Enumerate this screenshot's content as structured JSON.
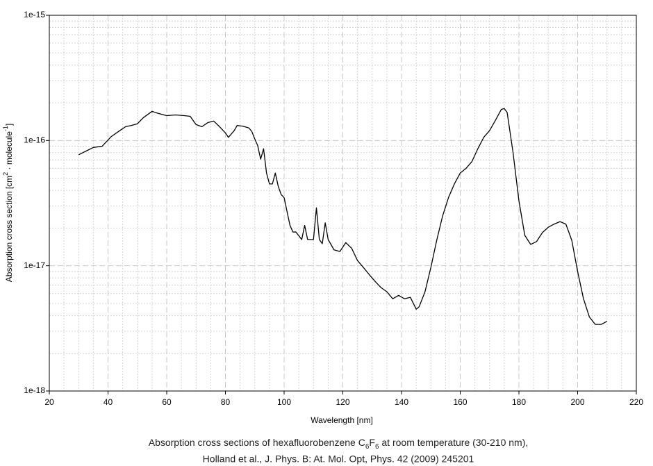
{
  "chart_data": {
    "type": "line",
    "log_y": true,
    "grid": true,
    "color": "#000000",
    "x_label": "Wavelength [nm]",
    "y_label": [
      "Absorption cross section [cm",
      "2",
      " · molecule",
      "-1",
      "]"
    ],
    "caption": [
      [
        "Absorption cross sections of hexafluorobenzene C",
        "6",
        "F",
        "6",
        " at room temperature (30-210 nm),"
      ],
      "Holland et al., J. Phys. B: At. Mol. Opt, Phys. 42 (2009) 245201"
    ],
    "xlim": [
      20,
      220
    ],
    "xticks": [
      20,
      40,
      60,
      80,
      100,
      120,
      140,
      160,
      180,
      200,
      220
    ],
    "ylim": [
      1e-18,
      1e-15
    ],
    "yticks": [
      {
        "value": 1e-18,
        "label": "1e-18"
      },
      {
        "value": 1e-17,
        "label": "1e-17"
      },
      {
        "value": 1e-16,
        "label": "1e-16"
      },
      {
        "value": 1e-15,
        "label": "1e-15"
      }
    ],
    "x": [
      30,
      35,
      38,
      41,
      44,
      46,
      48,
      50,
      52,
      55,
      57,
      60,
      63,
      66,
      68,
      70,
      72,
      74,
      76,
      78,
      80,
      81,
      83,
      84,
      86,
      88,
      89,
      90,
      91,
      92,
      93,
      94,
      95,
      96,
      97,
      98,
      99,
      100,
      101,
      102,
      103,
      104,
      106,
      107,
      108,
      110,
      111,
      112,
      113,
      114,
      115,
      117,
      119,
      121,
      123,
      125,
      127,
      129,
      131,
      133,
      135,
      137,
      139,
      141,
      143,
      145,
      146,
      148,
      150,
      152,
      154,
      156,
      158,
      160,
      162,
      164,
      166,
      168,
      170,
      172,
      174,
      175,
      176,
      178,
      180,
      182,
      184,
      186,
      188,
      190,
      192,
      194,
      196,
      198,
      200,
      202,
      204,
      206,
      208,
      210
    ],
    "values": [
      7.7e-17,
      8.8e-17,
      9e-17,
      1.07e-16,
      1.2e-16,
      1.29e-16,
      1.32e-16,
      1.36e-16,
      1.52e-16,
      1.71e-16,
      1.65e-16,
      1.58e-16,
      1.6e-16,
      1.58e-16,
      1.56e-16,
      1.34e-16,
      1.29e-16,
      1.39e-16,
      1.43e-16,
      1.29e-16,
      1.15e-16,
      1.06e-16,
      1.2e-16,
      1.32e-16,
      1.3e-16,
      1.26e-16,
      1.18e-16,
      1.03e-16,
      9.1e-17,
      7.1e-17,
      8.6e-17,
      5.5e-17,
      4.5e-17,
      4.5e-17,
      5.5e-17,
      4.3e-17,
      3.7e-17,
      3.5e-17,
      2.7e-17,
      2.1e-17,
      1.86e-17,
      1.86e-17,
      1.62e-17,
      2.1e-17,
      1.62e-17,
      1.62e-17,
      2.9e-17,
      1.62e-17,
      1.5e-17,
      2.2e-17,
      1.62e-17,
      1.34e-17,
      1.3e-17,
      1.53e-17,
      1.38e-17,
      1.1e-17,
      9.7e-18,
      8.5e-18,
      7.5e-18,
      6.7e-18,
      6.2e-18,
      5.45e-18,
      5.8e-18,
      5.45e-18,
      5.6e-18,
      4.5e-18,
      4.7e-18,
      6.2e-18,
      9.7e-18,
      1.6e-17,
      2.5e-17,
      3.5e-17,
      4.5e-17,
      5.5e-17,
      6e-17,
      6.8e-17,
      8.6e-17,
      1.06e-16,
      1.2e-16,
      1.45e-16,
      1.77e-16,
      1.8e-16,
      1.67e-16,
      8e-17,
      3.3e-17,
      1.75e-17,
      1.48e-17,
      1.56e-17,
      1.84e-17,
      2.03e-17,
      2.15e-17,
      2.25e-17,
      2.15e-17,
      1.6e-17,
      9e-18,
      5.45e-18,
      3.9e-18,
      3.4e-18,
      3.4e-18,
      3.6e-18
    ]
  }
}
